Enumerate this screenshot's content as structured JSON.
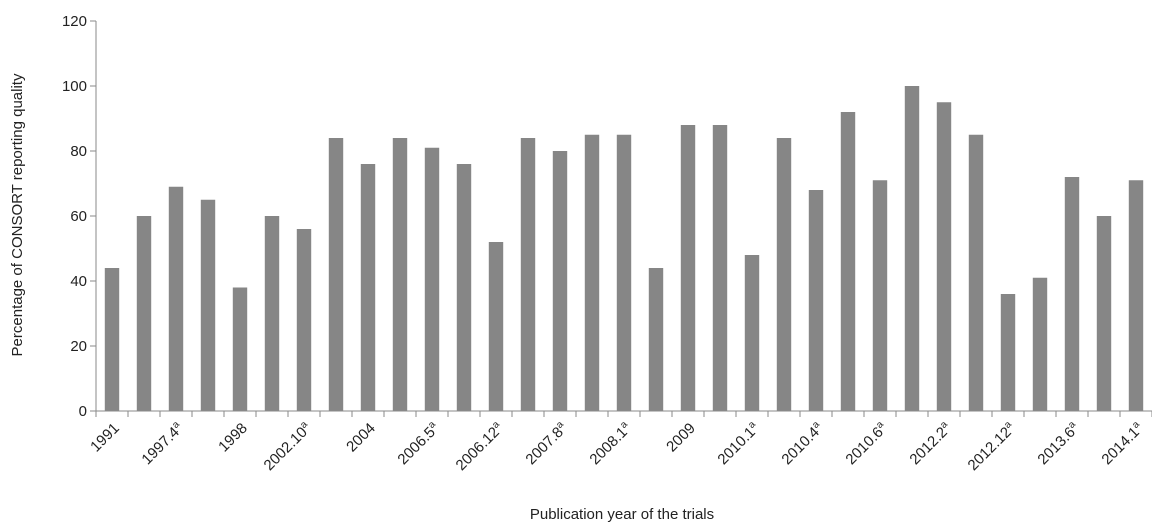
{
  "chart_data": {
    "type": "bar",
    "xlabel": "Publication year of the trials",
    "ylabel": "Percentage of CONSORT reporting quality",
    "ylim": [
      0,
      120
    ],
    "yticks": [
      0,
      20,
      40,
      60,
      80,
      100,
      120
    ],
    "grid": false,
    "bar_color": "#868686",
    "values": [
      44,
      60,
      69,
      65,
      38,
      60,
      56,
      84,
      76,
      84,
      81,
      76,
      52,
      84,
      80,
      85,
      85,
      44,
      88,
      88,
      48,
      84,
      68,
      92,
      71,
      100,
      95,
      85,
      36,
      41,
      72,
      60,
      71
    ],
    "tick_labels": [
      {
        "index": 0,
        "base": "1991",
        "sup": ""
      },
      {
        "index": 2,
        "base": "1997.4",
        "sup": "a"
      },
      {
        "index": 4,
        "base": "1998",
        "sup": ""
      },
      {
        "index": 6,
        "base": "2002.10",
        "sup": "a"
      },
      {
        "index": 8,
        "base": "2004",
        "sup": ""
      },
      {
        "index": 10,
        "base": "2006.5",
        "sup": "a"
      },
      {
        "index": 12,
        "base": "2006.12",
        "sup": "a"
      },
      {
        "index": 14,
        "base": "2007.8",
        "sup": "a"
      },
      {
        "index": 16,
        "base": "2008.1",
        "sup": "a"
      },
      {
        "index": 18,
        "base": "2009",
        "sup": ""
      },
      {
        "index": 20,
        "base": "2010.1",
        "sup": "a"
      },
      {
        "index": 22,
        "base": "2010.4",
        "sup": "a"
      },
      {
        "index": 24,
        "base": "2010.6",
        "sup": "a"
      },
      {
        "index": 26,
        "base": "2012.2",
        "sup": "a"
      },
      {
        "index": 28,
        "base": "2012.12",
        "sup": "a"
      },
      {
        "index": 30,
        "base": "2013.6",
        "sup": "a"
      },
      {
        "index": 32,
        "base": "2014.1",
        "sup": "a"
      }
    ]
  }
}
